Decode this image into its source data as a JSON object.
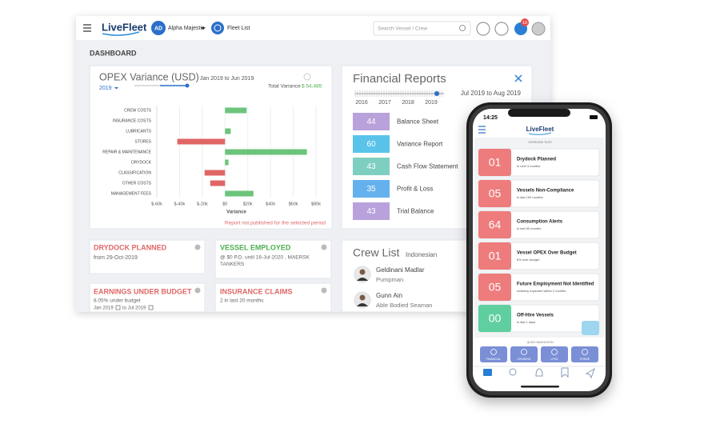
{
  "header": {
    "logo": "LiveFleet",
    "user_initials": "AD",
    "user_name": "Alpha Majestic",
    "fleet_link": "Fleet List",
    "search_placeholder": "Search Vessel / Crew",
    "notification_count": "10"
  },
  "dashboard": {
    "title": "DASHBOARD"
  },
  "opex": {
    "title": "OPEX Variance (USD)",
    "period": "Jan 2019 to Jun 2019",
    "year": "2019",
    "total_label": "Total Variance",
    "total_value": "$ 54,485",
    "x_axis_label": "Variance",
    "note": "Report not published for the selected period",
    "chart": {
      "type": "bar",
      "categories": [
        "CREW COSTS",
        "INSURANCE COSTS",
        "LUBRICANTS",
        "STORES",
        "REPAIR & MAINTENANCE",
        "DRYDOCK",
        "CLASSIFICATION",
        "OTHER COSTS",
        "MANAGEMENT FEES"
      ],
      "values": [
        19,
        0,
        5,
        -42,
        72,
        3,
        -18,
        -13,
        25
      ],
      "xlim": [
        -60,
        80
      ],
      "xticks": [
        {
          "value": -60,
          "label": "$-60k"
        },
        {
          "value": -40,
          "label": "$-40k"
        },
        {
          "value": -20,
          "label": "$-20k"
        },
        {
          "value": 0,
          "label": "$0"
        },
        {
          "value": 20,
          "label": "$20k"
        },
        {
          "value": 40,
          "label": "$40k"
        },
        {
          "value": 60,
          "label": "$60k"
        },
        {
          "value": 80,
          "label": "$80k"
        }
      ],
      "positive_color": "#6cc47a",
      "negative_color": "#e06666",
      "grid": true
    }
  },
  "financial_reports": {
    "title": "Financial Reports",
    "years": [
      "2016",
      "2017",
      "2018",
      "2019"
    ],
    "period": "Jul 2019 to Aug 2019",
    "rows": [
      {
        "value": 44,
        "label": "Balance Sheet",
        "color": "#b9a2dc"
      },
      {
        "value": 60,
        "label": "Variance Report",
        "color": "#5ac3ea"
      },
      {
        "value": 43,
        "label": "Cash Flow Statement",
        "color": "#7fcfc0"
      },
      {
        "value": 35,
        "label": "Profit & Loss",
        "color": "#64b1ee"
      },
      {
        "value": 43,
        "label": "Trial Balance",
        "color": "#b9a2dc"
      }
    ]
  },
  "tiles": {
    "drydock": {
      "title": "DRYDOCK PLANNED",
      "subtitle": "from 29-Oct-2019"
    },
    "vessel_employed": {
      "title": "VESSEL EMPLOYED",
      "lines": [
        "@ $0 P.D. until 16-Jul-2020 , MAERSK",
        "TANKERS"
      ]
    },
    "earnings": {
      "title": "EARNINGS UNDER BUDGET",
      "subtitle": "8.05% under budget",
      "from": "Jan 2019",
      "to": "to Jul 2019"
    },
    "insurance": {
      "title": "INSURANCE CLAIMS",
      "subtitle": "2 in last 20 months"
    }
  },
  "crew_list": {
    "title": "Crew List",
    "filter": "Indonesian",
    "members": [
      {
        "name": "Geldinani Madlar",
        "role": "Pumpman"
      },
      {
        "name": "Gunn Ain",
        "role": "Able Bodied Seaman"
      }
    ]
  },
  "phone": {
    "time": "14:25",
    "logo": "LiveFleet",
    "section": "OVERVIEW TILES",
    "tiles": [
      {
        "value": "01",
        "title": "Drydock Planned",
        "subtitle": "in next 3 months",
        "color": "#ee7c7c"
      },
      {
        "value": "05",
        "title": "Vessels Non-Compliance",
        "subtitle": "in last 100 months",
        "color": "#ee7c7c"
      },
      {
        "value": "64",
        "title": "Consumption Alerts",
        "subtitle": "in last 80 months",
        "color": "#ee7c7c"
      },
      {
        "value": "01",
        "title": "Vessel OPEX Over Budget",
        "subtitle": "8% over budget",
        "color": "#ee7c7c"
      },
      {
        "value": "05",
        "title": "Future Employment Not Identified",
        "subtitle": "rediviery expected within 2 months",
        "color": "#ee7c7c"
      },
      {
        "value": "00",
        "title": "Off-Hire Vessels",
        "subtitle": "in last 1 days",
        "color": "#5fcfa0"
      }
    ],
    "quick_nav_title": "QUICK NAVIGATION",
    "quick_nav": [
      "FINANCIAL",
      "CREWING",
      "LPSS",
      "PONSE"
    ]
  }
}
